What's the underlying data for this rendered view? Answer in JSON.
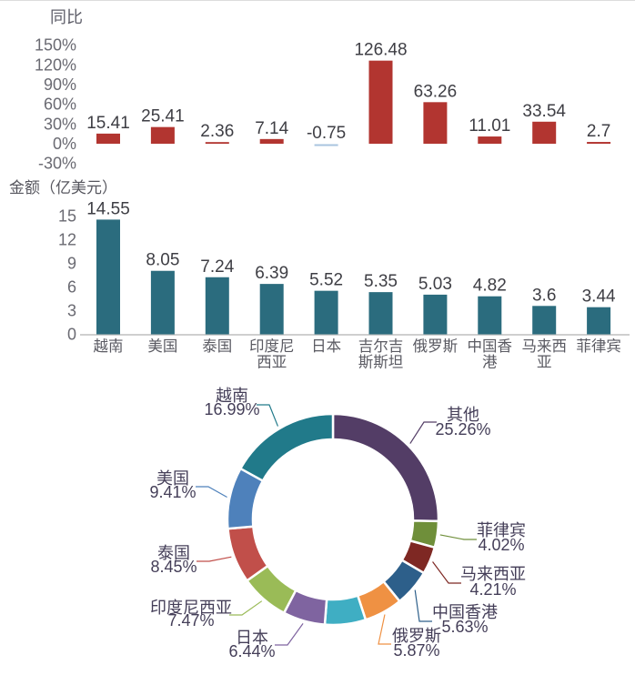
{
  "page": {
    "background": "#ffffff",
    "top_border_color": "#dcdcdc",
    "text_colors": {
      "axis": "#6a6a72",
      "value_label": "#3e3e44",
      "category": "#5a5a62",
      "donut_label": "#443e58"
    }
  },
  "chart_data": [
    {
      "type": "bar",
      "name": "yoy-growth",
      "title": "同比",
      "categories": [
        "越南",
        "美国",
        "泰国",
        "印度尼西亚",
        "日本",
        "吉尔吉斯斯坦",
        "俄罗斯",
        "中国香港",
        "马来西亚",
        "菲律宾"
      ],
      "values": [
        15.41,
        25.41,
        2.36,
        7.14,
        -0.75,
        126.48,
        63.26,
        11.01,
        33.54,
        2.7
      ],
      "value_labels": [
        "15.41",
        "25.41",
        "2.36",
        "7.14",
        "-0.75",
        "126.48",
        "63.26",
        "11.01",
        "33.54",
        "2.7"
      ],
      "y_ticks": [
        "150%",
        "120%",
        "90%",
        "60%",
        "30%",
        "0%",
        "-30%"
      ],
      "y_tick_values": [
        150,
        120,
        90,
        60,
        30,
        0,
        -30
      ],
      "ylim": [
        -30,
        150
      ],
      "grid": false,
      "legend": "none",
      "bar_color": "#b23530",
      "negative_bar_color": "#a9c4df"
    },
    {
      "type": "bar",
      "name": "amount",
      "title": "金额（亿美元）",
      "categories": [
        "越南",
        "美国",
        "泰国",
        "印度尼西亚",
        "日本",
        "吉尔吉斯斯坦",
        "俄罗斯",
        "中国香港",
        "马来西亚",
        "菲律宾"
      ],
      "category_label_lines": [
        [
          "越南"
        ],
        [
          "美国"
        ],
        [
          "泰国"
        ],
        [
          "印度尼",
          "西亚"
        ],
        [
          "日本"
        ],
        [
          "吉尔吉",
          "斯斯坦"
        ],
        [
          "俄罗斯"
        ],
        [
          "中国香",
          "港"
        ],
        [
          "马来西",
          "亚"
        ],
        [
          "菲律宾"
        ]
      ],
      "values": [
        14.55,
        8.05,
        7.24,
        6.39,
        5.52,
        5.35,
        5.03,
        4.82,
        3.6,
        3.44
      ],
      "value_labels": [
        "14.55",
        "8.05",
        "7.24",
        "6.39",
        "5.52",
        "5.35",
        "5.03",
        "4.82",
        "3.6",
        "3.44"
      ],
      "y_ticks": [
        "15",
        "12",
        "9",
        "6",
        "3",
        "0"
      ],
      "y_tick_values": [
        15,
        12,
        9,
        6,
        3,
        0
      ],
      "ylim": [
        0,
        15
      ],
      "grid": false,
      "legend": "none",
      "bar_color": "#2b6c7e",
      "axis_line_color": "#bfbfbf"
    },
    {
      "type": "pie",
      "name": "share-donut",
      "donut": true,
      "direction": "clockwise",
      "start": "top",
      "slices": [
        {
          "name": "其他",
          "pct": 25.26,
          "pct_label": "25.26%",
          "color": "#533d66",
          "label_visible": true
        },
        {
          "name": "菲律宾",
          "pct": 4.02,
          "pct_label": "4.02%",
          "color": "#6f8f3a",
          "label_visible": true
        },
        {
          "name": "马来西亚",
          "pct": 4.21,
          "pct_label": "4.21%",
          "color": "#7e2823",
          "label_visible": true
        },
        {
          "name": "中国香港",
          "pct": 5.63,
          "pct_label": "5.63%",
          "color": "#2d5f8a",
          "label_visible": true
        },
        {
          "name": "俄罗斯",
          "pct": 5.87,
          "pct_label": "5.87%",
          "color": "#ef9143",
          "label_visible": true
        },
        {
          "name": "",
          "pct": 6.25,
          "pct_label": "",
          "color": "#3faec3",
          "label_visible": false
        },
        {
          "name": "日本",
          "pct": 6.44,
          "pct_label": "6.44%",
          "color": "#7f64a0",
          "label_visible": true
        },
        {
          "name": "印度尼西亚",
          "pct": 7.47,
          "pct_label": "7.47%",
          "color": "#9abb57",
          "label_visible": true
        },
        {
          "name": "泰国",
          "pct": 8.45,
          "pct_label": "8.45%",
          "color": "#c14f4a",
          "label_visible": true
        },
        {
          "name": "美国",
          "pct": 9.41,
          "pct_label": "9.41%",
          "color": "#4e81bb",
          "label_visible": true
        },
        {
          "name": "越南",
          "pct": 16.99,
          "pct_label": "16.99%",
          "color": "#217a8a",
          "label_visible": true
        }
      ]
    }
  ]
}
